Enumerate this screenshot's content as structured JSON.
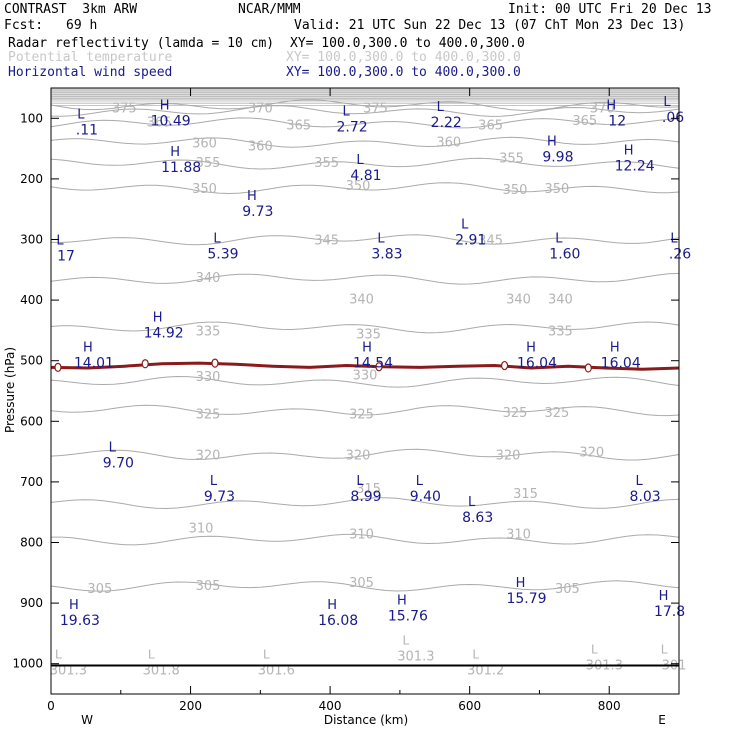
{
  "header": {
    "model": "CONTRAST  3km ARW",
    "org": "NCAR/MMM",
    "init": "Init: 00 UTC Fri 20 Dec 13",
    "fcst_label": "Fcst:",
    "fcst_value": "69 h",
    "valid": "Valid: 21 UTC Sun 22 Dec 13 (07 ChT Mon 23 Dec 13)"
  },
  "fields": [
    {
      "name": "Radar reflectivity (lamda = 10 cm)",
      "xy": "XY= 100.0,300.0 to 400.0,300.0",
      "color": "#000000"
    },
    {
      "name": "Potential temperature",
      "xy": "XY= 100.0,300.0 to 400.0,300.0",
      "color": "#c8c8c8"
    },
    {
      "name": "Horizontal wind speed",
      "xy": "XY= 100.0,300.0 to 400.0,300.0",
      "color": "#1a1a8c"
    }
  ],
  "chart_data": {
    "type": "contour",
    "xlabel": "Distance (km)",
    "ylabel": "Pressure (hPa)",
    "xlim": [
      0,
      900
    ],
    "ylim": [
      1050,
      50
    ],
    "x_ticks": [
      0,
      200,
      400,
      600,
      800
    ],
    "y_ticks": [
      100,
      200,
      300,
      400,
      500,
      600,
      700,
      800,
      900,
      1000
    ],
    "direction_labels": {
      "left": "W",
      "right": "E"
    },
    "theta_contours": [
      {
        "level": 375,
        "p": 78
      },
      {
        "level": 370,
        "p": 88
      },
      {
        "level": 365,
        "p": 108
      },
      {
        "level": 360,
        "p": 140
      },
      {
        "level": 355,
        "p": 175
      },
      {
        "level": 350,
        "p": 215
      },
      {
        "level": 345,
        "p": 300
      },
      {
        "level": 340,
        "p": 365
      },
      {
        "level": 335,
        "p": 445
      },
      {
        "level": 330,
        "p": 535
      },
      {
        "level": 325,
        "p": 582
      },
      {
        "level": 320,
        "p": 655
      },
      {
        "level": 315,
        "p": 735
      },
      {
        "level": 310,
        "p": 795
      },
      {
        "level": 305,
        "p": 872
      }
    ],
    "theta_labels": [
      {
        "x": 105,
        "p": 82,
        "text": "375"
      },
      {
        "x": 465,
        "p": 82,
        "text": "375"
      },
      {
        "x": 790,
        "p": 82,
        "text": "370"
      },
      {
        "x": 300,
        "p": 82,
        "text": "370"
      },
      {
        "x": 155,
        "p": 105,
        "text": "365"
      },
      {
        "x": 355,
        "p": 110,
        "text": "365"
      },
      {
        "x": 630,
        "p": 110,
        "text": "365"
      },
      {
        "x": 765,
        "p": 103,
        "text": "365"
      },
      {
        "x": 220,
        "p": 140,
        "text": "360"
      },
      {
        "x": 300,
        "p": 145,
        "text": "360"
      },
      {
        "x": 570,
        "p": 138,
        "text": "360"
      },
      {
        "x": 225,
        "p": 172,
        "text": "355"
      },
      {
        "x": 395,
        "p": 172,
        "text": "355"
      },
      {
        "x": 660,
        "p": 165,
        "text": "355"
      },
      {
        "x": 220,
        "p": 215,
        "text": "350"
      },
      {
        "x": 440,
        "p": 210,
        "text": "350"
      },
      {
        "x": 665,
        "p": 217,
        "text": "350"
      },
      {
        "x": 725,
        "p": 215,
        "text": "350"
      },
      {
        "x": 395,
        "p": 300,
        "text": "345"
      },
      {
        "x": 630,
        "p": 300,
        "text": "345"
      },
      {
        "x": 225,
        "p": 362,
        "text": "340"
      },
      {
        "x": 445,
        "p": 397,
        "text": "340"
      },
      {
        "x": 670,
        "p": 397,
        "text": "340"
      },
      {
        "x": 730,
        "p": 397,
        "text": "340"
      },
      {
        "x": 225,
        "p": 450,
        "text": "335"
      },
      {
        "x": 455,
        "p": 455,
        "text": "335"
      },
      {
        "x": 730,
        "p": 450,
        "text": "335"
      },
      {
        "x": 225,
        "p": 525,
        "text": "330"
      },
      {
        "x": 450,
        "p": 523,
        "text": "330"
      },
      {
        "x": 225,
        "p": 587,
        "text": "325"
      },
      {
        "x": 445,
        "p": 587,
        "text": "325"
      },
      {
        "x": 665,
        "p": 585,
        "text": "325"
      },
      {
        "x": 725,
        "p": 585,
        "text": "325"
      },
      {
        "x": 225,
        "p": 655,
        "text": "320"
      },
      {
        "x": 440,
        "p": 655,
        "text": "320"
      },
      {
        "x": 655,
        "p": 655,
        "text": "320"
      },
      {
        "x": 775,
        "p": 650,
        "text": "320"
      },
      {
        "x": 455,
        "p": 710,
        "text": "315"
      },
      {
        "x": 680,
        "p": 718,
        "text": "315"
      },
      {
        "x": 215,
        "p": 775,
        "text": "310"
      },
      {
        "x": 445,
        "p": 785,
        "text": "310"
      },
      {
        "x": 670,
        "p": 785,
        "text": "310"
      },
      {
        "x": 70,
        "p": 875,
        "text": "305"
      },
      {
        "x": 225,
        "p": 870,
        "text": "305"
      },
      {
        "x": 445,
        "p": 865,
        "text": "305"
      },
      {
        "x": 740,
        "p": 875,
        "text": "305"
      }
    ],
    "surface_labels": [
      {
        "x": 2,
        "p": 1008,
        "marker": "L",
        "text": "301.3"
      },
      {
        "x": 135,
        "p": 1008,
        "marker": "L",
        "text": "301.8"
      },
      {
        "x": 300,
        "p": 1008,
        "marker": "L",
        "text": "301.6"
      },
      {
        "x": 500,
        "p": 985,
        "marker": "L",
        "text": "301.3"
      },
      {
        "x": 600,
        "p": 1008,
        "marker": "L",
        "text": "301.2"
      },
      {
        "x": 770,
        "p": 1000,
        "marker": "L",
        "text": "301.3"
      },
      {
        "x": 870,
        "p": 1000,
        "marker": "L",
        "text": "301"
      }
    ],
    "reflectivity_contour": {
      "level": 0,
      "color": "#8b1a1a",
      "p": [
        511,
        512,
        509,
        505,
        504,
        506,
        509,
        511,
        508,
        510,
        511,
        509,
        508,
        512,
        509,
        512,
        514,
        512
      ]
    },
    "wind_extrema": [
      {
        "x": 40,
        "p": 110,
        "type": "L",
        "value": ".11"
      },
      {
        "x": 160,
        "p": 95,
        "type": "H",
        "value": "10.49"
      },
      {
        "x": 420,
        "p": 105,
        "type": "L",
        "value": "2.72"
      },
      {
        "x": 555,
        "p": 98,
        "type": "L",
        "value": "2.22"
      },
      {
        "x": 800,
        "p": 95,
        "type": "H",
        "value": "12"
      },
      {
        "x": 880,
        "p": 90,
        "type": "L",
        "value": ".06"
      },
      {
        "x": 175,
        "p": 172,
        "type": "H",
        "value": "11.88"
      },
      {
        "x": 440,
        "p": 185,
        "type": "L",
        "value": "4.81"
      },
      {
        "x": 715,
        "p": 155,
        "type": "H",
        "value": "9.98"
      },
      {
        "x": 825,
        "p": 170,
        "type": "H",
        "value": "12.24"
      },
      {
        "x": 285,
        "p": 245,
        "type": "H",
        "value": "9.73"
      },
      {
        "x": 10,
        "p": 318,
        "type": "L",
        "value": "17"
      },
      {
        "x": 235,
        "p": 315,
        "type": "L",
        "value": "5.39"
      },
      {
        "x": 470,
        "p": 315,
        "type": "L",
        "value": "3.83"
      },
      {
        "x": 590,
        "p": 292,
        "type": "L",
        "value": "2.91"
      },
      {
        "x": 725,
        "p": 315,
        "type": "L",
        "value": "1.60"
      },
      {
        "x": 890,
        "p": 315,
        "type": "L",
        "value": ".26"
      },
      {
        "x": 150,
        "p": 445,
        "type": "H",
        "value": "14.92"
      },
      {
        "x": 50,
        "p": 495,
        "type": "H",
        "value": "14.01"
      },
      {
        "x": 450,
        "p": 495,
        "type": "H",
        "value": "14.54"
      },
      {
        "x": 685,
        "p": 495,
        "type": "H",
        "value": "16.04"
      },
      {
        "x": 805,
        "p": 495,
        "type": "H",
        "value": "16.04"
      },
      {
        "x": 85,
        "p": 660,
        "type": "L",
        "value": "9.70"
      },
      {
        "x": 230,
        "p": 715,
        "type": "L",
        "value": "9.73"
      },
      {
        "x": 440,
        "p": 715,
        "type": "L",
        "value": "8.99"
      },
      {
        "x": 525,
        "p": 715,
        "type": "L",
        "value": "9.40"
      },
      {
        "x": 600,
        "p": 750,
        "type": "L",
        "value": "8.63"
      },
      {
        "x": 840,
        "p": 715,
        "type": "L",
        "value": "8.03"
      },
      {
        "x": 670,
        "p": 883,
        "type": "H",
        "value": "15.79"
      },
      {
        "x": 500,
        "p": 912,
        "type": "H",
        "value": "15.76"
      },
      {
        "x": 30,
        "p": 920,
        "type": "H",
        "value": "19.63"
      },
      {
        "x": 400,
        "p": 920,
        "type": "H",
        "value": "16.08"
      },
      {
        "x": 875,
        "p": 905,
        "type": "H",
        "value": "17.8"
      }
    ]
  }
}
